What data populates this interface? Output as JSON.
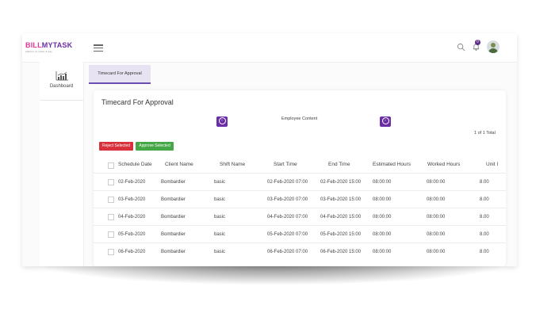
{
  "app": {
    "logo_part1": "BILL",
    "logo_part2": "MYTASK",
    "tagline": "planner to order & pay"
  },
  "topbar": {
    "notification_count": "0"
  },
  "sidebar": {
    "items": [
      {
        "label": "Dashboard",
        "icon": "chart-icon"
      }
    ]
  },
  "tab": {
    "label": "Timecard For Approval"
  },
  "card": {
    "title": "Timecard For Approval",
    "employee_label": "Employee Content",
    "total": "1 of 1 Total",
    "reject_label": "Reject Selected",
    "approve_label": "Approve Selected"
  },
  "table": {
    "headers": [
      "Schedule Date",
      "Client Name",
      "Shift Name",
      "Start Time",
      "End Time",
      "Estimated Hours",
      "Worked Hours",
      "Unit I"
    ],
    "rows": [
      [
        "02-Feb-2020",
        "Bombardier",
        "basic",
        "02-Feb-2020 07:00",
        "02-Feb-2020 15:00",
        "08:00:00",
        "08:00:00",
        "8.00"
      ],
      [
        "03-Feb-2020",
        "Bombardier",
        "basic",
        "03-Feb-2020 07:00",
        "03-Feb-2020 15:00",
        "08:00:00",
        "08:00:00",
        "8.00"
      ],
      [
        "04-Feb-2020",
        "Bombardier",
        "basic",
        "04-Feb-2020 07:00",
        "04-Feb-2020 15:00",
        "08:00:00",
        "08:00:00",
        "8.00"
      ],
      [
        "05-Feb-2020",
        "Bombardier",
        "basic",
        "05-Feb-2020 07:00",
        "05-Feb-2020 15:00",
        "08:00:00",
        "08:00:00",
        "8.00"
      ],
      [
        "06-Feb-2020",
        "Bombardier",
        "basic",
        "06-Feb-2020 07:00",
        "06-Feb-2020 15:00",
        "08:00:00",
        "08:00:00",
        "8.00"
      ]
    ]
  },
  "colors": {
    "brand_pink": "#e2389a",
    "brand_purple": "#6a2ea6",
    "reject": "#d9303e",
    "approve": "#46a746"
  }
}
